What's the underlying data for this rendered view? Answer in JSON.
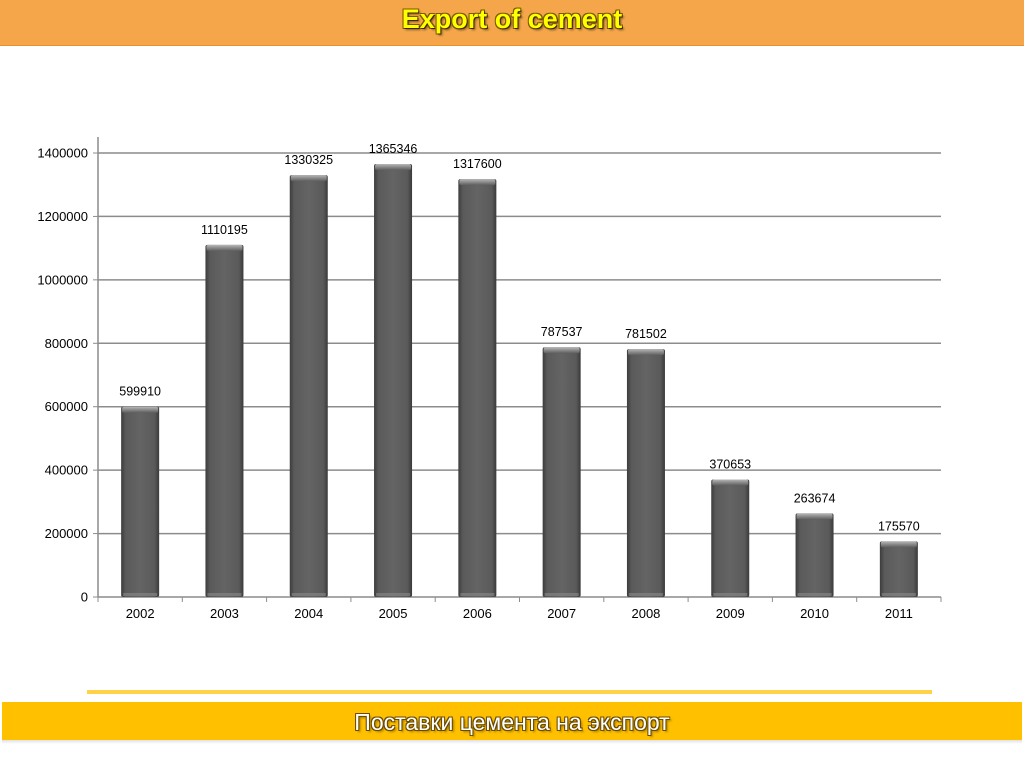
{
  "header": {
    "title": "Export of cement"
  },
  "footer": {
    "caption": "Поставки цемента на экспорт"
  },
  "colors": {
    "header_bg": "#f5a64a",
    "title_text": "#ffff00",
    "footer_bg": "#ffc000",
    "bar": "#5f5f5f",
    "gridline": "#808080"
  },
  "chart_data": {
    "type": "bar",
    "categories": [
      "2002",
      "2003",
      "2004",
      "2005",
      "2006",
      "2007",
      "2008",
      "2009",
      "2010",
      "2011"
    ],
    "values": [
      599910,
      1110195,
      1330325,
      1365346,
      1317600,
      787537,
      781502,
      370653,
      263674,
      175570
    ],
    "data_labels": [
      "599910",
      "1110195",
      "1330325",
      "1365346",
      "1317600",
      "787537",
      "781502",
      "370653",
      "263674",
      "175570"
    ],
    "title": "",
    "xlabel": "",
    "ylabel": "",
    "ylim": [
      0,
      1400000
    ],
    "yticks": [
      0,
      200000,
      400000,
      600000,
      800000,
      1000000,
      1200000,
      1400000
    ],
    "ytick_labels": [
      "0",
      "200000",
      "400000",
      "600000",
      "800000",
      "1000000",
      "1200000",
      "1400000"
    ],
    "grid": true,
    "legend": "none"
  }
}
